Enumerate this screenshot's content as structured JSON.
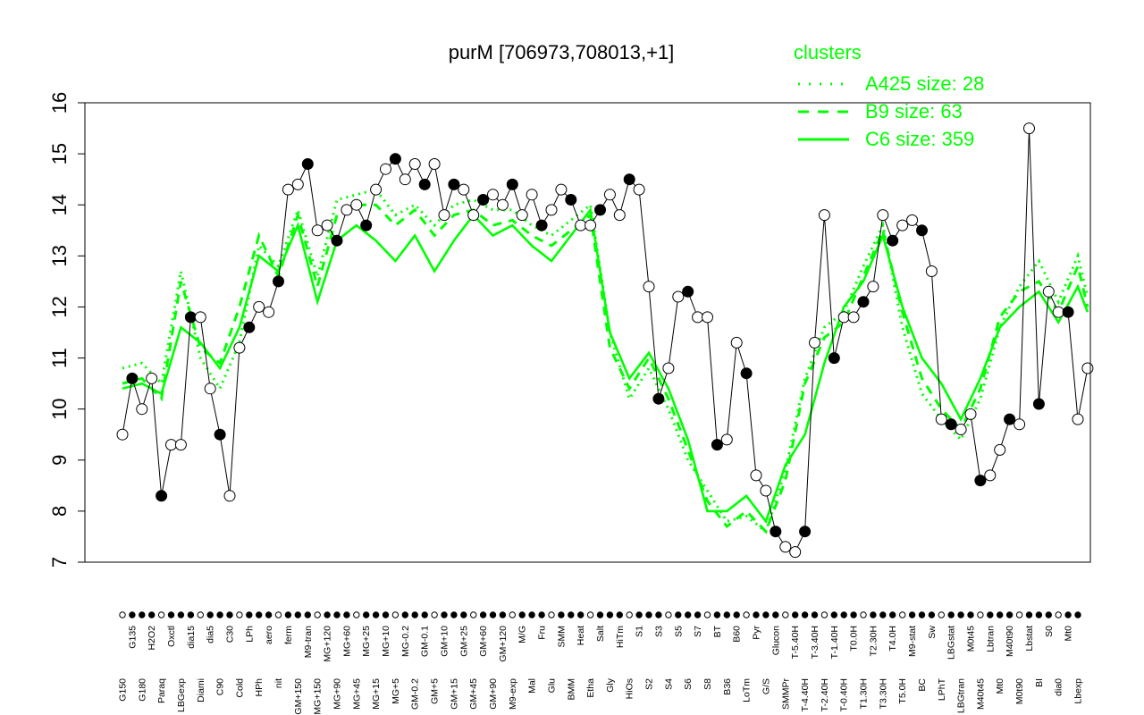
{
  "chart_data": {
    "type": "line",
    "title": "purM [706973,708013,+1]",
    "xlabel": "",
    "ylabel": "",
    "ylim": [
      7,
      16
    ],
    "y_ticks": [
      7,
      8,
      9,
      10,
      11,
      12,
      13,
      14,
      15,
      16
    ],
    "grid": false,
    "x_tick_labels": [
      "G150",
      "G135",
      "G180",
      "H2O2",
      "Paraq",
      "Oxctl",
      "LBGexp",
      "dia15",
      "Diami",
      "dia5",
      "C90",
      "C30",
      "Cold",
      "LPh",
      "HPh",
      "aero",
      "nit",
      "ferm",
      "GM+150",
      "M9-tran",
      "MG+150",
      "MG+120",
      "MG+90",
      "MG+60",
      "MG+45",
      "MG+25",
      "MG+15",
      "MG+10",
      "MG+5",
      "MG-0.2",
      "GM-0.2",
      "GM-0.1",
      "GM+5",
      "GM+10",
      "GM+15",
      "GM+25",
      "GM+45",
      "GM+60",
      "GM+90",
      "GM+120",
      "M9-exp",
      "M/G",
      "Mal",
      "Fru",
      "Glu",
      "SMM",
      "BMM",
      "Heat",
      "Etha",
      "Salt",
      "Gly",
      "HiTm",
      "HiOs",
      "S1",
      "S2",
      "S3",
      "S4",
      "S5",
      "S6",
      "S7",
      "S8",
      "BT",
      "B36",
      "B60",
      "LoTm",
      "Pyr",
      "G/S",
      "Glucon",
      "SMMPr",
      "T-5.40H",
      "T-4.40H",
      "T-3.40H",
      "T-2.40H",
      "T-1.40H",
      "T-0.40H",
      "T0.0H",
      "T1.30H",
      "T2.30H",
      "T3.30H",
      "T4.0H",
      "T5.0H",
      "M9-stat",
      "BC",
      "Sw",
      "LPhT",
      "LBGstat",
      "LBGtran",
      "M0t45",
      "M40t45",
      "Lbtran",
      "Mt0",
      "M40t90",
      "M0t90",
      "Lbstat",
      "BI",
      "S0",
      "dia0",
      "Mt0",
      "Lbexp"
    ],
    "legend": {
      "title": "clusters",
      "placement": "top-right",
      "entries": [
        {
          "label": "A425 size: 28",
          "style": "dotted"
        },
        {
          "label": "B9 size: 63",
          "style": "dashed"
        },
        {
          "label": "C6 size: 359",
          "style": "solid"
        }
      ]
    },
    "series": [
      {
        "name": "C6 size: 359",
        "style": "solid",
        "x": [
          1,
          5,
          9,
          13,
          17,
          21,
          25,
          29,
          33,
          37,
          41,
          45,
          49,
          53,
          57,
          61,
          65,
          69,
          73,
          77,
          81,
          85,
          89,
          93,
          97,
          101,
          105,
          109,
          113,
          117,
          121,
          125,
          129,
          133,
          137,
          141,
          145,
          149,
          153,
          157,
          161,
          165,
          169,
          173,
          177,
          181,
          185,
          189,
          193,
          197,
          199
        ],
        "y": [
          10.4,
          10.5,
          10.3,
          11.6,
          11.3,
          10.8,
          11.6,
          13.0,
          12.7,
          13.6,
          12.1,
          13.3,
          13.6,
          13.3,
          12.9,
          13.4,
          12.7,
          13.3,
          13.8,
          13.4,
          13.6,
          13.2,
          12.9,
          13.4,
          13.9,
          11.5,
          10.6,
          11.1,
          10.4,
          9.4,
          8.0,
          8.0,
          8.3,
          7.8,
          8.9,
          9.5,
          10.9,
          12.0,
          12.5,
          13.4,
          12.0,
          11.0,
          10.5,
          9.8,
          10.6,
          11.6,
          12.0,
          12.3,
          11.7,
          12.4,
          11.9
        ]
      },
      {
        "name": "B9 size: 63",
        "style": "dashed",
        "x": [
          1,
          5,
          9,
          13,
          17,
          21,
          25,
          29,
          33,
          37,
          41,
          45,
          49,
          53,
          57,
          61,
          65,
          69,
          73,
          77,
          81,
          85,
          89,
          93,
          97,
          101,
          105,
          109,
          113,
          117,
          121,
          125,
          129,
          133,
          137,
          141,
          145,
          149,
          153,
          157,
          161,
          165,
          169,
          173,
          177,
          181,
          185,
          189,
          193,
          197,
          199
        ],
        "y": [
          10.5,
          10.6,
          10.2,
          12.5,
          11.2,
          10.9,
          12.0,
          13.4,
          12.6,
          13.8,
          12.4,
          13.8,
          14.0,
          14.0,
          13.6,
          13.9,
          13.4,
          13.8,
          13.9,
          13.6,
          13.7,
          13.4,
          13.2,
          13.5,
          13.8,
          11.2,
          10.4,
          11.0,
          10.2,
          9.2,
          8.2,
          7.7,
          8.0,
          7.6,
          8.6,
          10.5,
          11.4,
          11.7,
          12.6,
          13.5,
          11.9,
          10.6,
          10.0,
          9.6,
          10.4,
          11.8,
          12.3,
          12.5,
          11.9,
          12.8,
          12.0
        ]
      },
      {
        "name": "A425 size: 28",
        "style": "dotted",
        "x": [
          1,
          5,
          9,
          13,
          17,
          21,
          25,
          29,
          33,
          37,
          41,
          45,
          49,
          53,
          57,
          61,
          65,
          69,
          73,
          77,
          81,
          85,
          89,
          93,
          97,
          101,
          105,
          109,
          113,
          117,
          121,
          125,
          129,
          133,
          137,
          141,
          145,
          149,
          153,
          157,
          161,
          165,
          169,
          173,
          177,
          181,
          185,
          189,
          193,
          197,
          199
        ],
        "y": [
          10.8,
          10.9,
          10.5,
          12.7,
          11.0,
          10.4,
          11.3,
          13.2,
          12.8,
          13.9,
          12.6,
          14.1,
          14.2,
          14.3,
          13.8,
          14.0,
          13.6,
          14.0,
          14.1,
          13.9,
          13.9,
          13.6,
          13.4,
          13.7,
          14.0,
          11.5,
          10.2,
          10.8,
          10.0,
          9.0,
          8.4,
          7.8,
          7.9,
          7.6,
          8.8,
          10.6,
          11.6,
          11.9,
          12.8,
          13.6,
          11.6,
          10.3,
          9.8,
          9.4,
          10.2,
          11.6,
          12.4,
          12.9,
          12.1,
          13.0,
          12.2
        ]
      },
      {
        "name": "",
        "style": "gene",
        "x": [
          1,
          3,
          5,
          7,
          9,
          11,
          13,
          15,
          17,
          19,
          21,
          23,
          25,
          27,
          29,
          31,
          33,
          35,
          37,
          39,
          41,
          43,
          45,
          47,
          49,
          51,
          53,
          55,
          57,
          59,
          61,
          63,
          65,
          67,
          69,
          71,
          73,
          75,
          77,
          79,
          81,
          83,
          85,
          87,
          89,
          91,
          93,
          95,
          97,
          99,
          101,
          103,
          105,
          107,
          109,
          111,
          113,
          115,
          117,
          119,
          121,
          123,
          125,
          127,
          129,
          131,
          133,
          135,
          137,
          139,
          141,
          143,
          145,
          147,
          149,
          151,
          153,
          155,
          157,
          159,
          161,
          163,
          165,
          167,
          169,
          171,
          173,
          175,
          177,
          179,
          181,
          183,
          185,
          187,
          189,
          191,
          193,
          195,
          197,
          199
        ],
        "y": [
          9.5,
          10.6,
          10.0,
          10.6,
          8.3,
          9.3,
          9.3,
          11.8,
          11.8,
          10.4,
          9.5,
          8.3,
          11.2,
          11.6,
          12.0,
          11.9,
          12.5,
          14.3,
          14.4,
          14.8,
          13.5,
          13.6,
          13.3,
          13.9,
          14.0,
          13.6,
          14.3,
          14.7,
          14.9,
          14.5,
          14.8,
          14.4,
          14.8,
          13.8,
          14.4,
          14.3,
          13.8,
          14.1,
          14.2,
          14.0,
          14.4,
          13.8,
          14.2,
          13.6,
          13.9,
          14.3,
          14.1,
          13.6,
          13.6,
          13.9,
          14.2,
          13.8,
          14.5,
          14.3,
          12.4,
          10.2,
          10.8,
          12.2,
          12.3,
          11.8,
          11.8,
          9.3,
          9.4,
          11.3,
          10.7,
          8.7,
          8.4,
          7.6,
          7.3,
          7.2,
          7.6,
          11.3,
          13.8,
          11.0,
          11.8,
          11.8,
          12.1,
          12.4,
          13.8,
          13.3,
          13.6,
          13.7,
          13.5,
          12.7,
          9.8,
          9.7,
          9.6,
          9.9,
          8.6,
          8.7,
          9.2,
          9.8,
          9.7,
          15.5,
          10.1,
          12.3,
          11.9,
          11.9,
          9.8,
          10.8
        ]
      }
    ]
  },
  "colors": {
    "cluster_lines": "#00ff00",
    "points_stroke": "#000000",
    "axis": "#000000",
    "background": "#ffffff"
  }
}
